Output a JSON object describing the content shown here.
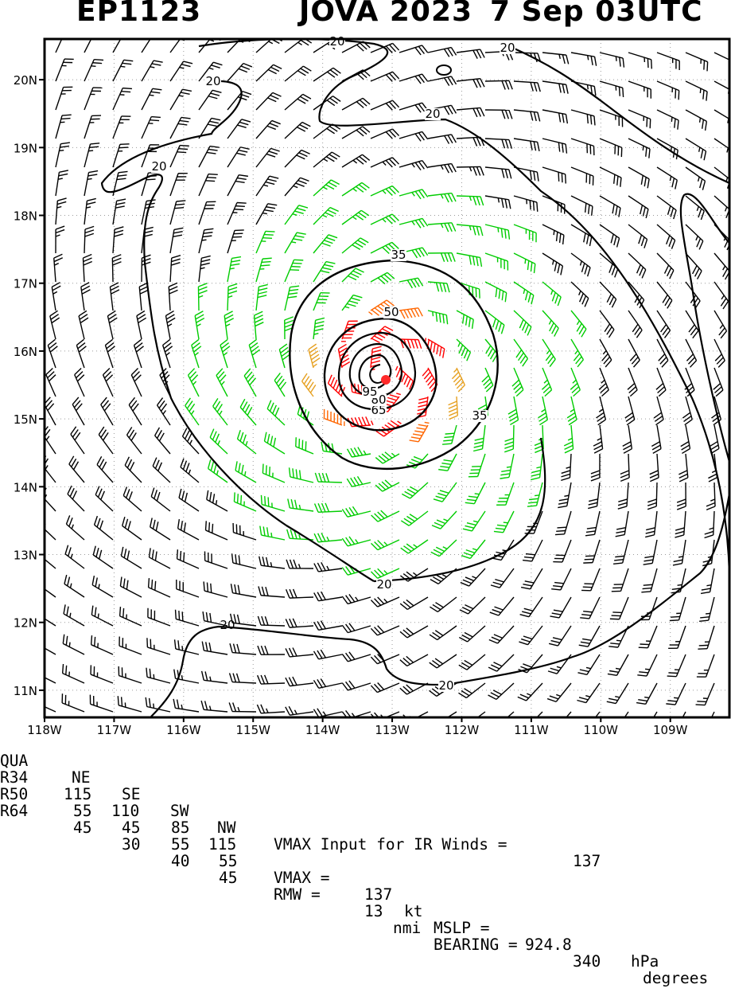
{
  "header": {
    "storm_id": "EP1123",
    "storm_name_year": "JOVA 2023",
    "time": "7 Sep 03UTC"
  },
  "map": {
    "lon_labels": [
      "118W",
      "117W",
      "116W",
      "115W",
      "114W",
      "113W",
      "112W",
      "111W",
      "110W",
      "109W"
    ],
    "lat_labels": [
      "11N",
      "12N",
      "13N",
      "14N",
      "15N",
      "16N",
      "17N",
      "18N",
      "19N",
      "20N"
    ],
    "lon_range": [
      -118,
      -108.15
    ],
    "lat_range": [
      10.6,
      20.6
    ],
    "contour_labels": [
      "20",
      "20",
      "20",
      "20",
      "20",
      "20",
      "20",
      "35",
      "35",
      "50",
      "65",
      "80",
      "95"
    ],
    "contour_levels_kt": [
      20,
      35,
      50,
      65,
      80,
      95
    ],
    "barb_colors": {
      "under_34kt": "#000000",
      "34_to_49kt": "#00cc00",
      "50_to_63kt": "#e6a020",
      "64_to_82kt": "#ff6600",
      "83kt_plus": "#ff0000"
    },
    "center": {
      "lon": -113.1,
      "lat": 15.65
    }
  },
  "footer": {
    "radii_header": [
      "QUA",
      "NE",
      "SE",
      "SW",
      "NW"
    ],
    "radii_rows": [
      {
        "label": "R34",
        "values": [
          "115",
          "110",
          "85",
          "115"
        ]
      },
      {
        "label": "R50",
        "values": [
          "55",
          "45",
          "55",
          "55"
        ]
      },
      {
        "label": "R64",
        "values": [
          "45",
          "30",
          "40",
          "45"
        ]
      }
    ],
    "vmax_ir_label": "VMAX Input for IR Winds =",
    "vmax_ir_value": "137",
    "vmax_label": "VMAX =",
    "vmax_value": "137",
    "vmax_unit": "kt",
    "mslp_label": "MSLP =",
    "mslp_value": "924.8",
    "mslp_unit": "hPa",
    "rmw_label": "RMW =",
    "rmw_value": "13",
    "rmw_unit": "nmi",
    "bearing_label": "BEARING =",
    "bearing_value": "340",
    "bearing_unit": "degrees"
  }
}
